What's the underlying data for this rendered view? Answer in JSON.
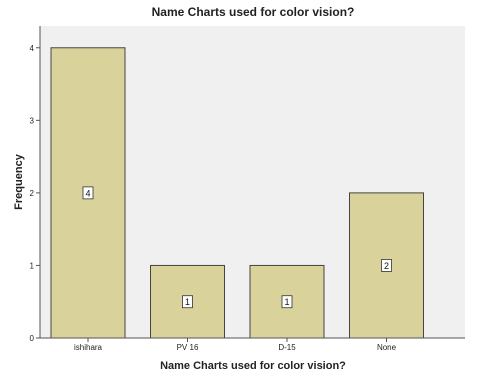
{
  "chart_data": {
    "type": "bar",
    "title": "Name Charts used for color vision?",
    "xlabel": "Name Charts used for color vision?",
    "ylabel": "Frequency",
    "categories": [
      "ishihara",
      "PV 16",
      "D-15",
      "None"
    ],
    "values": [
      4,
      1,
      1,
      2
    ],
    "data_labels": [
      "4",
      "1",
      "1",
      "2"
    ],
    "ylim": [
      0,
      4.3
    ],
    "yticks": [
      0,
      1,
      2,
      3,
      4
    ],
    "ytick_labels": [
      "0",
      "1",
      "2",
      "3",
      "4"
    ],
    "grid": false,
    "legend": "none"
  },
  "colors": {
    "bar_fill": "#D9D39B",
    "bar_stroke": "#444444",
    "plot_background": "#F0F0F0",
    "axis": "#555555",
    "text": "#222222",
    "label_box": "#FFFFFF"
  }
}
